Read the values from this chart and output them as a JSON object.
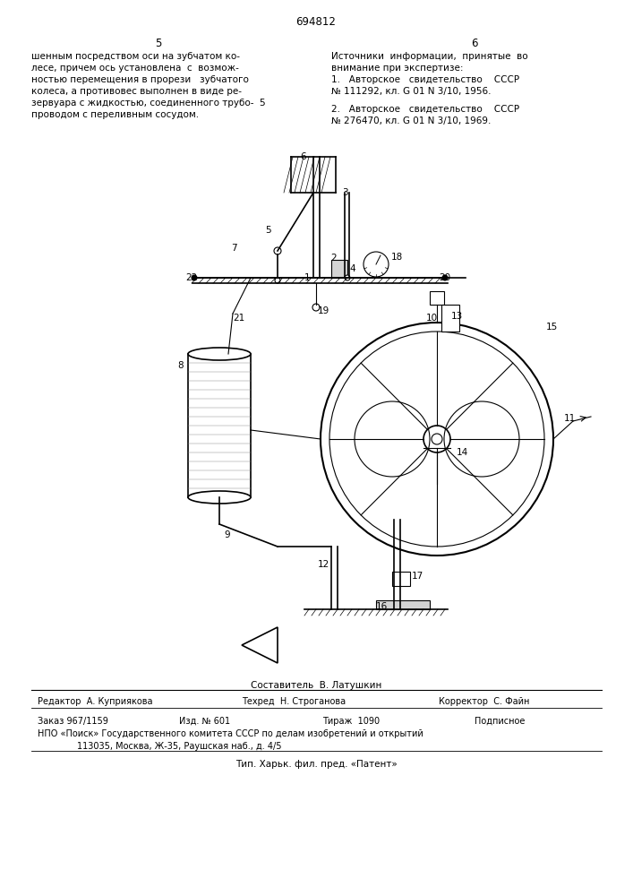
{
  "page_number": "694812",
  "col_left": "5",
  "col_right": "6",
  "text_left": "шенным посредством оси на зубчатом ко-\nлесе, причем ось установлена  с  возмож-\nностью перемещения в прорези   зубчатого\nколеса, а противовес выполнен в виде ре-\nзервуара с жидкостью, соединенного трубо-\nпроводом с переливным сосудом.",
  "text_right_title": "Источники  информации,  принятые  во\nвнимание при экспертизе:",
  "text_right_1": "1.   Авторское   свидетельство    СССР\n№ 111292, кл. G 01 N 3/10, 1956.",
  "text_right_2": "2.   Авторское   свидетельство    СССР\n№ 276470, кл. G 01 N 3/10, 1969.",
  "col_num_5": "5",
  "footer_line1_label1": "Составитель  В. Латушкин",
  "footer_editor": "Редактор  А. Куприякова",
  "footer_tech": "Техред  Н. Строганова",
  "footer_corrector": "Корректор  С. Файн",
  "footer_order": "Заказ 967/1159",
  "footer_izd": "Изд. № 601",
  "footer_tirazh": "Тираж  1090",
  "footer_podp": "Подписное",
  "footer_npo": "НПО «Поиск» Государственного комитета СССР по делам изобретений и открытий",
  "footer_addr": "113035, Москва, Ж-35, Раушская наб., д. 4/5",
  "footer_tip": "Тип. Харьк. фил. пред. «Патент»",
  "bg_color": "#ffffff",
  "text_color": "#000000"
}
